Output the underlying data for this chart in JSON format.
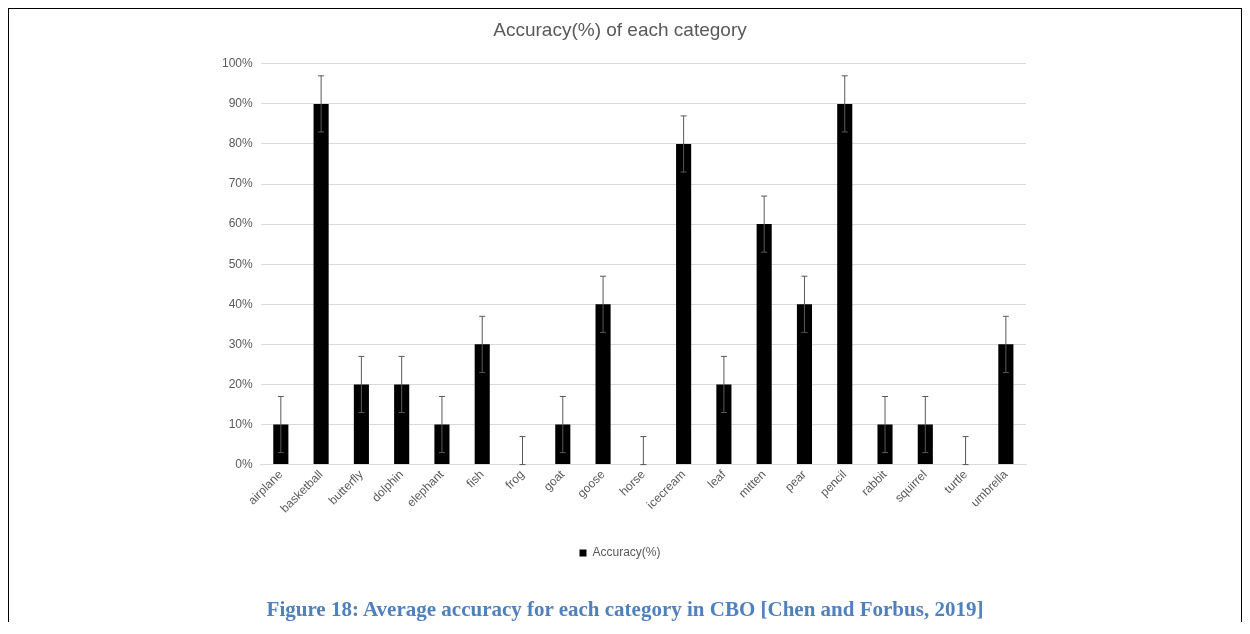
{
  "chart_data": {
    "type": "bar",
    "title": "Accuracy(%) of each category",
    "categories": [
      "airplane",
      "basketball",
      "butterfly",
      "dolphin",
      "elephant",
      "fish",
      "frog",
      "goat",
      "goose",
      "horse",
      "icecream",
      "leaf",
      "mitten",
      "pear",
      "pencil",
      "rabbit",
      "squirrel",
      "turtle",
      "umbrella"
    ],
    "series": [
      {
        "name": "Accuracy(%)",
        "color": "#000000",
        "values": [
          10,
          90,
          20,
          20,
          10,
          30,
          0,
          10,
          40,
          0,
          80,
          20,
          60,
          40,
          90,
          10,
          10,
          0,
          30
        ],
        "errors": [
          7,
          7,
          7,
          7,
          7,
          7,
          [
            0,
            7
          ],
          7,
          7,
          [
            0,
            7
          ],
          7,
          7,
          7,
          7,
          7,
          7,
          7,
          [
            0,
            7
          ],
          7
        ]
      }
    ],
    "ylim": [
      0,
      100
    ],
    "yticks": [
      {
        "value": 0,
        "label": "0%"
      },
      {
        "value": 10,
        "label": "10%"
      },
      {
        "value": 20,
        "label": "20%"
      },
      {
        "value": 30,
        "label": "30%"
      },
      {
        "value": 40,
        "label": "40%"
      },
      {
        "value": 50,
        "label": "50%"
      },
      {
        "value": 60,
        "label": "60%"
      },
      {
        "value": 70,
        "label": "70%"
      },
      {
        "value": 80,
        "label": "80%"
      },
      {
        "value": 90,
        "label": "90%"
      },
      {
        "value": 100,
        "label": "100%"
      }
    ],
    "grid": "y",
    "legend": "bottom",
    "annotations": [
      "Figure 18: Average accuracy for each category in CBO [Chen and Forbus, 2019]"
    ]
  }
}
